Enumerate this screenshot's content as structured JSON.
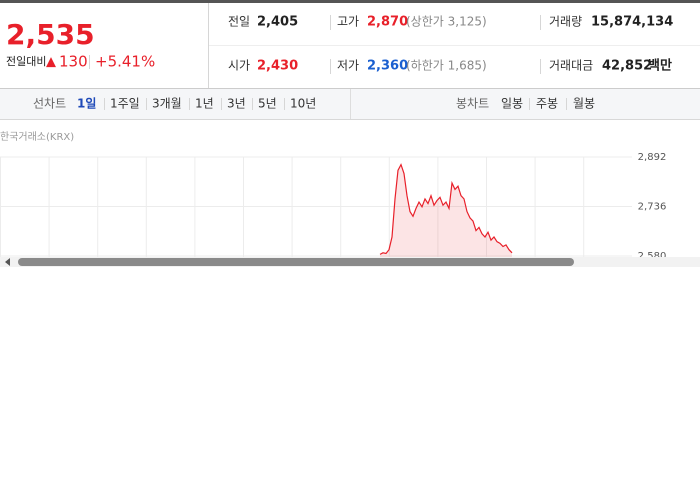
{
  "quote": {
    "price": "2,535",
    "change_label": "전일대비",
    "change_arrow": "▲",
    "change": "130",
    "change_rate": "+5.41%"
  },
  "stats": [
    {
      "label": "전일",
      "value": "2,405"
    },
    {
      "label": "고가",
      "value": "2,870",
      "note": "(상한가 3,125)"
    },
    {
      "label": "거래량",
      "value": "15,874,134"
    },
    {
      "label": "시가",
      "value": "2,430"
    },
    {
      "label": "저가",
      "value": "2,360",
      "note": "(하한가 1,685)"
    },
    {
      "label": "거래대금",
      "value": "42,852",
      "unit": "백만"
    }
  ],
  "tabs": {
    "line_label": "선차트",
    "line_tabs": [
      "1일",
      "1주일",
      "3개월",
      "1년",
      "3년",
      "5년",
      "10년"
    ],
    "candle_label": "봉차트",
    "candle_tabs": [
      "일봉",
      "주봉",
      "월봉"
    ]
  },
  "chart_data": {
    "type": "line",
    "source": "한국거래소(KRX)",
    "color": "#e8202a",
    "grid": true,
    "ylim": [
      2580,
      2892
    ],
    "yticks": [
      {
        "value": 2892,
        "label": "2,892"
      },
      {
        "value": 2736,
        "label": "2,736"
      },
      {
        "value": 2580,
        "label": "2,580"
      }
    ],
    "values": [
      2585,
      2590,
      2588,
      2600,
      2640,
      2760,
      2850,
      2868,
      2840,
      2770,
      2720,
      2705,
      2730,
      2750,
      2735,
      2760,
      2745,
      2770,
      2740,
      2755,
      2765,
      2740,
      2750,
      2730,
      2810,
      2790,
      2800,
      2770,
      2760,
      2720,
      2700,
      2690,
      2660,
      2670,
      2650,
      2640,
      2655,
      2630,
      2640,
      2625,
      2620,
      2610,
      2615,
      2600,
      2590
    ]
  }
}
